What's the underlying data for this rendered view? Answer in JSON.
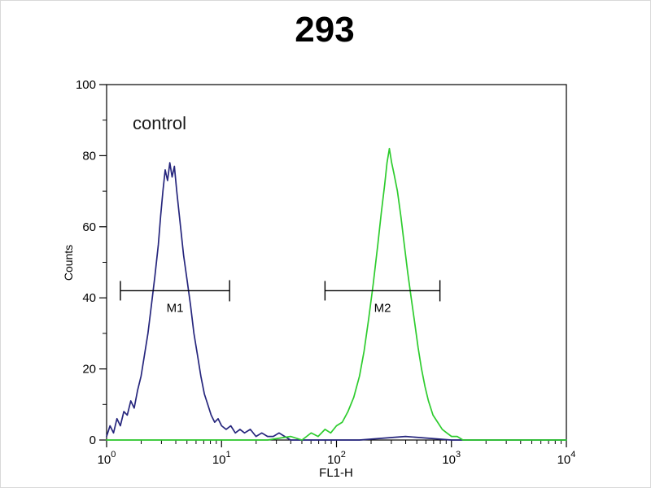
{
  "chart_data": {
    "type": "line",
    "title": "293",
    "xlabel": "FL1-H",
    "ylabel": "Counts",
    "annotation": "control",
    "x_scale": "log",
    "xlim_log": [
      0,
      4
    ],
    "ylim": [
      0,
      100
    ],
    "x_tick_exponents": [
      0,
      1,
      2,
      3,
      4
    ],
    "y_ticks": [
      0,
      20,
      40,
      60,
      80,
      100
    ],
    "y_minor_step": 10,
    "grid": false,
    "legend": "none",
    "series": [
      {
        "name": "blue_peak",
        "color": "#26267d",
        "points": [
          [
            0.0,
            1
          ],
          [
            0.03,
            4
          ],
          [
            0.06,
            2
          ],
          [
            0.09,
            6
          ],
          [
            0.12,
            4
          ],
          [
            0.15,
            8
          ],
          [
            0.18,
            7
          ],
          [
            0.21,
            11
          ],
          [
            0.24,
            9
          ],
          [
            0.27,
            14
          ],
          [
            0.3,
            18
          ],
          [
            0.33,
            24
          ],
          [
            0.36,
            30
          ],
          [
            0.39,
            38
          ],
          [
            0.42,
            46
          ],
          [
            0.45,
            55
          ],
          [
            0.47,
            63
          ],
          [
            0.49,
            70
          ],
          [
            0.51,
            76
          ],
          [
            0.53,
            73
          ],
          [
            0.55,
            78
          ],
          [
            0.57,
            74
          ],
          [
            0.59,
            77
          ],
          [
            0.61,
            70
          ],
          [
            0.63,
            64
          ],
          [
            0.65,
            58
          ],
          [
            0.67,
            52
          ],
          [
            0.7,
            45
          ],
          [
            0.73,
            38
          ],
          [
            0.76,
            30
          ],
          [
            0.79,
            24
          ],
          [
            0.82,
            18
          ],
          [
            0.85,
            13
          ],
          [
            0.88,
            10
          ],
          [
            0.91,
            7
          ],
          [
            0.94,
            5
          ],
          [
            0.97,
            6
          ],
          [
            1.0,
            4
          ],
          [
            1.04,
            3
          ],
          [
            1.08,
            4
          ],
          [
            1.12,
            2
          ],
          [
            1.16,
            3
          ],
          [
            1.2,
            2
          ],
          [
            1.25,
            3
          ],
          [
            1.3,
            1
          ],
          [
            1.35,
            2
          ],
          [
            1.4,
            1
          ],
          [
            1.45,
            1
          ],
          [
            1.5,
            2
          ],
          [
            1.55,
            1
          ],
          [
            1.6,
            0
          ],
          [
            1.8,
            0
          ],
          [
            2.2,
            0
          ],
          [
            2.6,
            1
          ],
          [
            3.0,
            0
          ],
          [
            3.5,
            0
          ],
          [
            4.0,
            0
          ]
        ]
      },
      {
        "name": "green_peak",
        "color": "#2ecc2e",
        "points": [
          [
            0.0,
            0
          ],
          [
            0.5,
            0
          ],
          [
            1.0,
            0
          ],
          [
            1.4,
            0
          ],
          [
            1.6,
            1
          ],
          [
            1.7,
            0
          ],
          [
            1.78,
            2
          ],
          [
            1.84,
            1
          ],
          [
            1.9,
            3
          ],
          [
            1.95,
            2
          ],
          [
            2.0,
            4
          ],
          [
            2.05,
            5
          ],
          [
            2.1,
            8
          ],
          [
            2.15,
            12
          ],
          [
            2.2,
            18
          ],
          [
            2.24,
            25
          ],
          [
            2.28,
            34
          ],
          [
            2.32,
            44
          ],
          [
            2.36,
            55
          ],
          [
            2.39,
            64
          ],
          [
            2.42,
            72
          ],
          [
            2.44,
            78
          ],
          [
            2.46,
            82
          ],
          [
            2.48,
            78
          ],
          [
            2.5,
            75
          ],
          [
            2.53,
            70
          ],
          [
            2.56,
            63
          ],
          [
            2.59,
            55
          ],
          [
            2.62,
            47
          ],
          [
            2.65,
            40
          ],
          [
            2.68,
            33
          ],
          [
            2.71,
            26
          ],
          [
            2.74,
            20
          ],
          [
            2.77,
            15
          ],
          [
            2.8,
            11
          ],
          [
            2.84,
            7
          ],
          [
            2.88,
            5
          ],
          [
            2.92,
            3
          ],
          [
            2.96,
            2
          ],
          [
            3.0,
            1
          ],
          [
            3.05,
            1
          ],
          [
            3.1,
            0
          ],
          [
            3.3,
            0
          ],
          [
            3.6,
            0
          ],
          [
            4.0,
            0
          ]
        ]
      }
    ],
    "gates": [
      {
        "label": "M1",
        "y": 42,
        "x1_log": 0.12,
        "x2_log": 1.07
      },
      {
        "label": "M2",
        "y": 42,
        "x1_log": 1.9,
        "x2_log": 2.9
      }
    ]
  }
}
